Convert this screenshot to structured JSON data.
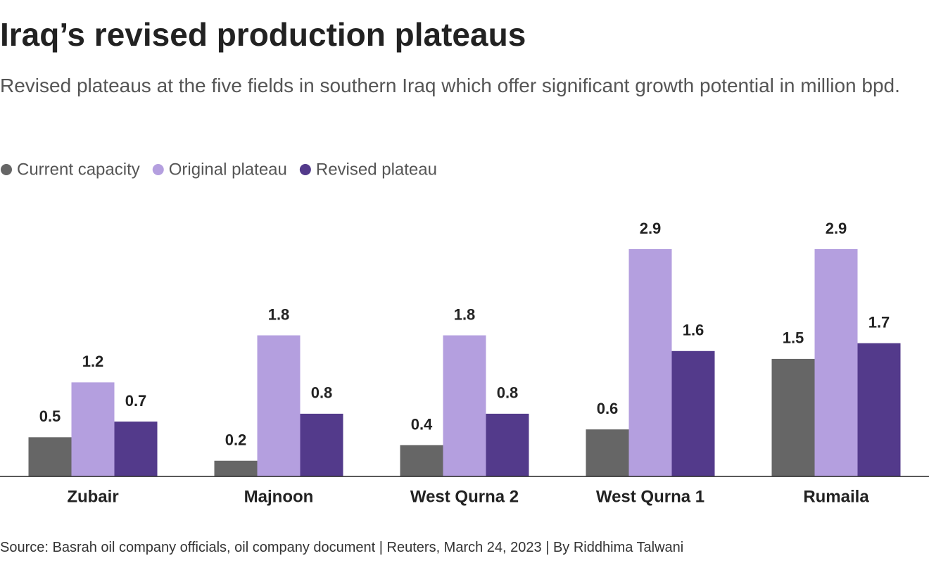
{
  "chart_data": {
    "type": "bar",
    "title": "Iraq’s revised production plateaus",
    "subtitle": "Revised plateaus at the five fields in southern Iraq which offer significant growth potential in million bpd.",
    "categories": [
      "Zubair",
      "Majnoon",
      "West Qurna 2",
      "West Qurna 1",
      "Rumaila"
    ],
    "series": [
      {
        "name": "Current capacity",
        "color": "#666666",
        "values": [
          0.5,
          0.2,
          0.4,
          0.6,
          1.5
        ]
      },
      {
        "name": "Original plateau",
        "color": "#b49fdf",
        "values": [
          1.2,
          1.8,
          1.8,
          2.9,
          2.9
        ]
      },
      {
        "name": "Revised plateau",
        "color": "#533a8b",
        "values": [
          0.7,
          0.8,
          0.8,
          1.6,
          1.7
        ]
      }
    ],
    "legend": "top-left",
    "source": "Source: Basrah oil company officials, oil company document | Reuters, March 24, 2023 | By Riddhima Talwani"
  }
}
